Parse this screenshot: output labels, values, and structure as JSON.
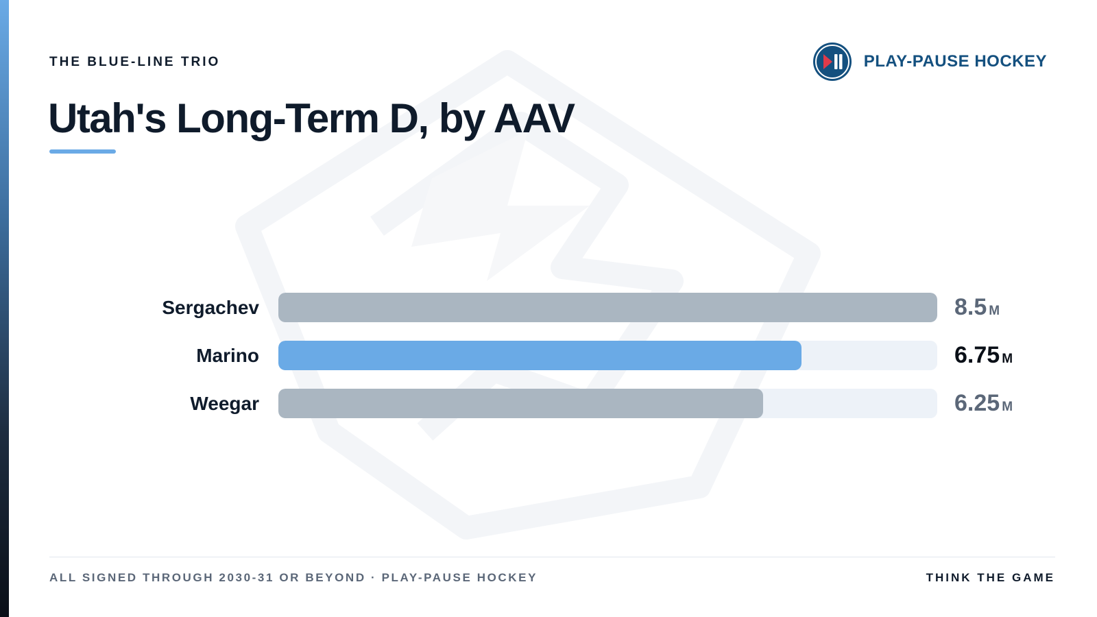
{
  "header": {
    "kicker": "THE BLUE-LINE TRIO",
    "title": "Utah's Long-Term D, by AAV",
    "brand_name": "PLAY-PAUSE HOCKEY",
    "brand_icon": "play-pause-icon"
  },
  "chart_data": {
    "type": "bar",
    "orientation": "horizontal",
    "categories": [
      "Sergachev",
      "Marino",
      "Weegar"
    ],
    "values": [
      8.5,
      6.75,
      6.25
    ],
    "value_labels": [
      "8.5",
      "6.75",
      "6.25"
    ],
    "unit": "M",
    "highlighted": "Marino",
    "xlim": [
      0,
      8.5
    ],
    "grid": false,
    "colors": {
      "bar": "#aab6c1",
      "highlight": "#6aaae6",
      "track": "#edf2f8"
    }
  },
  "footer": {
    "note": "ALL SIGNED THROUGH 2030-31 OR BEYOND · PLAY-PAUSE HOCKEY",
    "tagline": "THINK THE GAME"
  },
  "colors": {
    "accent": "#6aaae6",
    "brand": "#14507f",
    "ink": "#0f1b2b",
    "muted": "#5b6778"
  }
}
